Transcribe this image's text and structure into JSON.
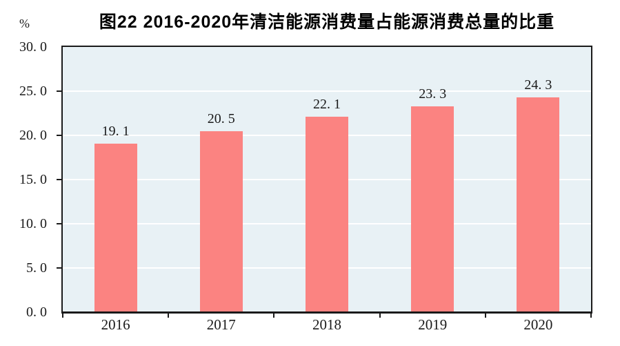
{
  "page": {
    "background": "#FFFFFF"
  },
  "header": {
    "unit_label": "%",
    "title": "图22  2016-2020年清洁能源消费量占能源消费总量的比重"
  },
  "chart_data": {
    "type": "bar",
    "title": "图22  2016-2020年清洁能源消费量占能源消费总量的比重",
    "categories": [
      "2016",
      "2017",
      "2018",
      "2019",
      "2020"
    ],
    "values": [
      19.1,
      20.5,
      22.1,
      23.3,
      24.3
    ],
    "value_labels": [
      "19. 1",
      "20. 5",
      "22. 1",
      "23. 3",
      "24. 3"
    ],
    "series_name": "清洁能源消费量占能源消费总量的比重",
    "xlabel": "",
    "ylabel": "%",
    "ylim": [
      0,
      30
    ],
    "ytick_interval": 5,
    "ytick_labels_top_to_bottom": [
      "30. 0",
      "25. 0",
      "20. 0",
      "15. 0",
      "10. 0",
      "5. 0",
      "0. 0"
    ],
    "grid": true,
    "legend": "none",
    "colors": {
      "bar": "#FB8381",
      "plot_background": "#E8F1F5",
      "gridline": "#FFFFFF",
      "axis": "#1A1A1A",
      "text": "#1A1A1A"
    }
  }
}
